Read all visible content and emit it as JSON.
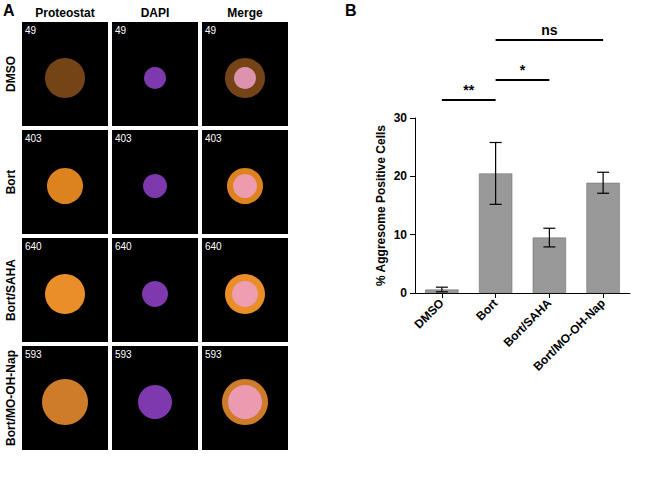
{
  "panel_labels": [
    "A",
    "B"
  ],
  "panel_a": {
    "columns": [
      "Proteostat",
      "DAPI",
      "Merge"
    ],
    "rows": [
      {
        "label": "DMSO",
        "number": 49
      },
      {
        "label": "Bort",
        "number": 403
      },
      {
        "label": "Bort/SAHA",
        "number": 640
      },
      {
        "label": "Bort/MO-OH-Nap",
        "number": 593
      }
    ]
  },
  "chart_data": {
    "type": "bar",
    "y_label": "% Aggresome Positive Cells",
    "categories": [
      "DMSO",
      "Bort",
      "Bort/SAHA",
      "Bort/MO-OH-Nap"
    ],
    "values": [
      0.6,
      20.5,
      9.5,
      18.9
    ],
    "errors": [
      0.4,
      5.3,
      1.6,
      1.8
    ],
    "color": "#999999",
    "ylim": [
      0,
      30
    ],
    "yticks": [
      0,
      10,
      20,
      30
    ],
    "grid": false,
    "data_labels": false,
    "annotations": [
      {
        "from": "DMSO",
        "to": "Bort",
        "label": "**"
      },
      {
        "from": "Bort",
        "to": "Bort/SAHA",
        "label": "*"
      },
      {
        "from": "Bort",
        "to": "Bort/MO-OH-Nap",
        "label": "ns"
      }
    ]
  }
}
